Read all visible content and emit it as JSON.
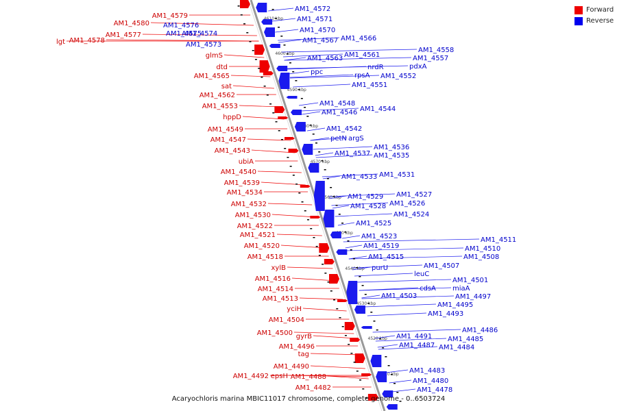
{
  "caption": "Acaryochloris marina MBIC11017 chromosome, complete genome - 0..6503724",
  "legend": [
    {
      "label": "Forward",
      "color": "#ee0000"
    },
    {
      "label": "Reverse",
      "color": "#0000ee"
    }
  ],
  "colors": {
    "forward": "#ee0000",
    "reverse": "#1a1aee",
    "axis": "#888888",
    "text_forward": "#cc0000",
    "text_reverse": "#0000cc"
  },
  "axis_ticks": [
    "4610 kbp",
    "4600 kbp",
    "4590 kbp",
    "4580 kbp",
    "4570 kbp",
    "4560 kbp",
    "4550 kbp",
    "4540 kbp",
    "4530 kbp",
    "4520 kbp",
    "4510 kbp"
  ],
  "forward_labels": [
    "lgt",
    "AM1_4578",
    "AM1_4580",
    "AM1_4579",
    "AM1_4577",
    "glmS",
    "dtd",
    "AM1_4565",
    "sat",
    "AM1_4562",
    "AM1_4553",
    "hppD",
    "AM1_4549",
    "AM1_4547",
    "AM1_4543",
    "ubiA",
    "AM1_4540",
    "AM1_4539",
    "AM1_4534",
    "AM1_4532",
    "AM1_4530",
    "AM1_4522",
    "AM1_4521",
    "AM1_4520",
    "AM1_4518",
    "xylB",
    "AM1_4516",
    "AM1_4514",
    "AM1_4513",
    "yciH",
    "AM1_4504",
    "AM1_4500",
    "gyrB",
    "AM1_4496",
    "tag",
    "AM1_4490",
    "AM1_4492",
    "epsH",
    "AM1_4488",
    "AM1_4482"
  ],
  "reverse_labels": [
    "AM1_4572",
    "AM1_4571",
    "AM1_4576",
    "AM1_4575",
    "AM1_4574",
    "AM1_4573",
    "AM1_4570",
    "AM1_4567",
    "AM1_4566",
    "AM1_4563",
    "AM1_4561",
    "AM1_4558",
    "AM1_4557",
    "nrdR",
    "pdxA",
    "ppc",
    "rpsA",
    "AM1_4552",
    "AM1_4551",
    "AM1_4548",
    "AM1_4546",
    "AM1_4544",
    "AM1_4542",
    "petN",
    "argS",
    "AM1_4537",
    "AM1_4536",
    "AM1_4535",
    "AM1_4533",
    "AM1_4531",
    "AM1_4529",
    "AM1_4527",
    "AM1_4528",
    "AM1_4526",
    "AM1_4524",
    "AM1_4525",
    "AM1_4523",
    "AM1_4519",
    "AM1_4511",
    "AM1_4510",
    "AM1_4508",
    "AM1_4515",
    "purU",
    "AM1_4507",
    "leuC",
    "AM1_4501",
    "cdsA",
    "miaA",
    "AM1_4503",
    "AM1_4497",
    "AM1_4495",
    "AM1_4493",
    "AM1_4486",
    "AM1_4491",
    "AM1_4485",
    "AM1_4487",
    "AM1_4484",
    "AM1_4483",
    "AM1_4480",
    "AM1_4478"
  ]
}
